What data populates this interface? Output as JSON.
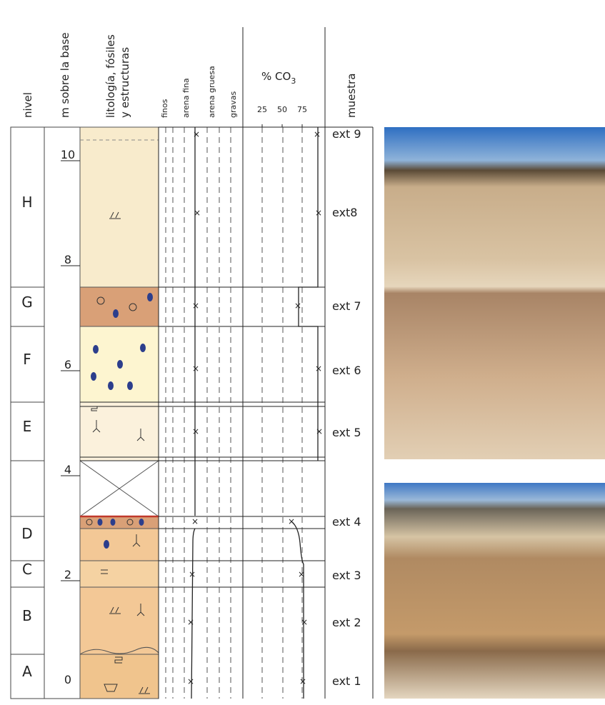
{
  "header": {
    "nivel": "nivel",
    "m_base": "m sobre la base",
    "litologia": [
      "litología, fósiles",
      "y estructuras"
    ],
    "texture": [
      "finos",
      "arena fina",
      "arena gruesa",
      "gravas"
    ],
    "co3_label": {
      "text": "% CO",
      "sub": "3"
    },
    "co3_ticks": [
      25,
      50,
      75
    ],
    "muestra": "muestra"
  },
  "levels": [
    "H",
    "G",
    "F",
    "E",
    "D",
    "C",
    "B",
    "A"
  ],
  "scale": [
    10,
    8,
    6,
    4,
    2,
    0
  ],
  "samples": [
    "ext 9",
    "ext8",
    "ext 7",
    "ext 6",
    "ext 5",
    "ext 4",
    "ext 3",
    "ext 2",
    "ext 1"
  ]
}
